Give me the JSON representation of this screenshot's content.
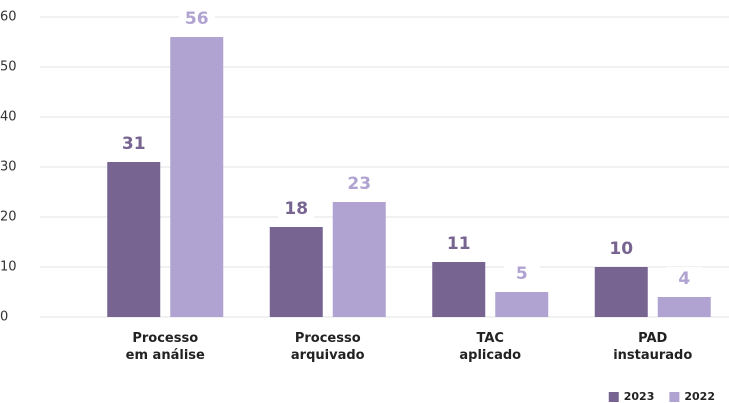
{
  "chart_data": {
    "type": "bar",
    "categories": [
      "Processo em análise",
      "Processo arquivado",
      "TAC aplicado",
      "PAD instaurado"
    ],
    "series": [
      {
        "name": "2023",
        "color": "#776491",
        "values": [
          31,
          18,
          11,
          10
        ]
      },
      {
        "name": "2022",
        "color": "#b0a3d1",
        "values": [
          56,
          23,
          5,
          4
        ]
      }
    ],
    "ylim": [
      0,
      60
    ],
    "yticks": [
      0,
      10,
      20,
      30,
      40,
      50,
      60
    ],
    "grid": true,
    "legend": "bottom-right"
  }
}
